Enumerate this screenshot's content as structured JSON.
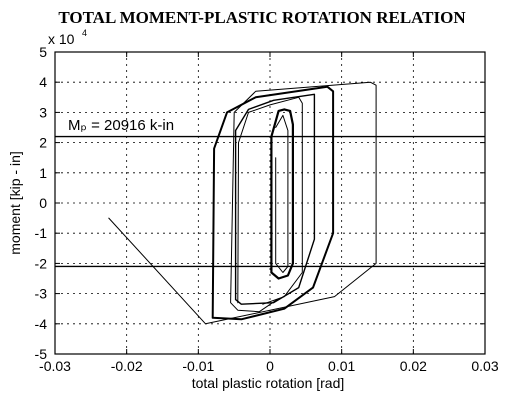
{
  "chart_data": {
    "type": "line",
    "title": "TOTAL MOMENT-PLASTIC ROTATION RELATION",
    "xlabel": "total plastic rotation [rad]",
    "ylabel": "moment  [kip - in]",
    "y_multiplier": "x 10",
    "y_multiplier_exponent": "4",
    "xlim": [
      -0.03,
      0.03
    ],
    "ylim": [
      -5,
      5
    ],
    "x_ticks": [
      -0.03,
      -0.02,
      -0.01,
      0,
      0.01,
      0.02,
      0.03
    ],
    "x_tick_labels": [
      "-0.03",
      "-0.02",
      "-0.01",
      "0",
      "0.01",
      "0.02",
      "0.03"
    ],
    "y_ticks": [
      -5,
      -4,
      -3,
      -2,
      -1,
      0,
      1,
      2,
      3,
      4,
      5
    ],
    "y_tick_labels": [
      "-5",
      "-4",
      "-3",
      "-2",
      "-1",
      "0",
      "1",
      "2",
      "3",
      "4",
      "5"
    ],
    "grid": true,
    "annotation": "Mₚ = 20916 k-in",
    "plastic_moment": 2.0916,
    "series": [
      {
        "width": 1.0,
        "points": [
          [
            -0.0225,
            -0.5
          ],
          [
            -0.009,
            -4.0
          ],
          [
            0.009,
            -3.1
          ],
          [
            0.0148,
            -2.0
          ],
          [
            0.0148,
            3.9
          ],
          [
            0.014,
            4.0
          ],
          [
            -0.002,
            3.7
          ],
          [
            -0.005,
            3.0
          ],
          [
            -0.0055,
            -3.3
          ],
          [
            -0.0045,
            -3.55
          ],
          [
            -0.0015,
            -3.6
          ],
          [
            0.001,
            -3.2
          ]
        ]
      },
      {
        "width": 2.0,
        "points": [
          [
            -0.008,
            -3.8
          ],
          [
            -0.0078,
            1.8
          ],
          [
            -0.006,
            3.0
          ],
          [
            -0.002,
            3.5
          ],
          [
            0.008,
            3.85
          ],
          [
            0.0088,
            3.7
          ],
          [
            0.0088,
            -1.0
          ],
          [
            0.006,
            -2.8
          ],
          [
            0.002,
            -3.5
          ],
          [
            -0.004,
            -3.85
          ],
          [
            -0.008,
            -3.8
          ]
        ]
      },
      {
        "width": 1.4,
        "points": [
          [
            -0.0048,
            -3.2
          ],
          [
            -0.0048,
            2.4
          ],
          [
            -0.003,
            3.1
          ],
          [
            0.0005,
            3.4
          ],
          [
            0.0062,
            3.6
          ],
          [
            0.0062,
            -1.2
          ],
          [
            0.004,
            -2.8
          ],
          [
            0.0005,
            -3.3
          ],
          [
            -0.004,
            -3.35
          ],
          [
            -0.0048,
            -3.2
          ]
        ]
      },
      {
        "width": 1.0,
        "points": [
          [
            -0.0045,
            -3.3
          ],
          [
            -0.0044,
            2.0
          ],
          [
            -0.003,
            3.0
          ],
          [
            0.0,
            3.25
          ],
          [
            0.004,
            3.5
          ],
          [
            0.0045,
            3.3
          ],
          [
            0.0045,
            -2.3
          ],
          [
            0.002,
            -3.1
          ],
          [
            -0.001,
            -3.35
          ]
        ]
      },
      {
        "width": 2.2,
        "points": [
          [
            0.0002,
            -2.3
          ],
          [
            0.0002,
            2.2
          ],
          [
            0.0012,
            3.05
          ],
          [
            0.002,
            3.1
          ],
          [
            0.0028,
            3.05
          ],
          [
            0.0032,
            2.6
          ],
          [
            0.0032,
            -2.0
          ],
          [
            0.0025,
            -2.4
          ],
          [
            0.0012,
            -2.5
          ],
          [
            0.0002,
            -2.3
          ]
        ]
      },
      {
        "width": 1.0,
        "points": [
          [
            0.0008,
            1.5
          ],
          [
            0.0008,
            -2.0
          ],
          [
            0.0018,
            -2.3
          ],
          [
            0.0025,
            -2.1
          ],
          [
            0.0025,
            2.4
          ],
          [
            0.0018,
            2.9
          ],
          [
            0.0008,
            2.5
          ]
        ]
      }
    ],
    "hlines": [
      2.2,
      -2.1
    ]
  }
}
